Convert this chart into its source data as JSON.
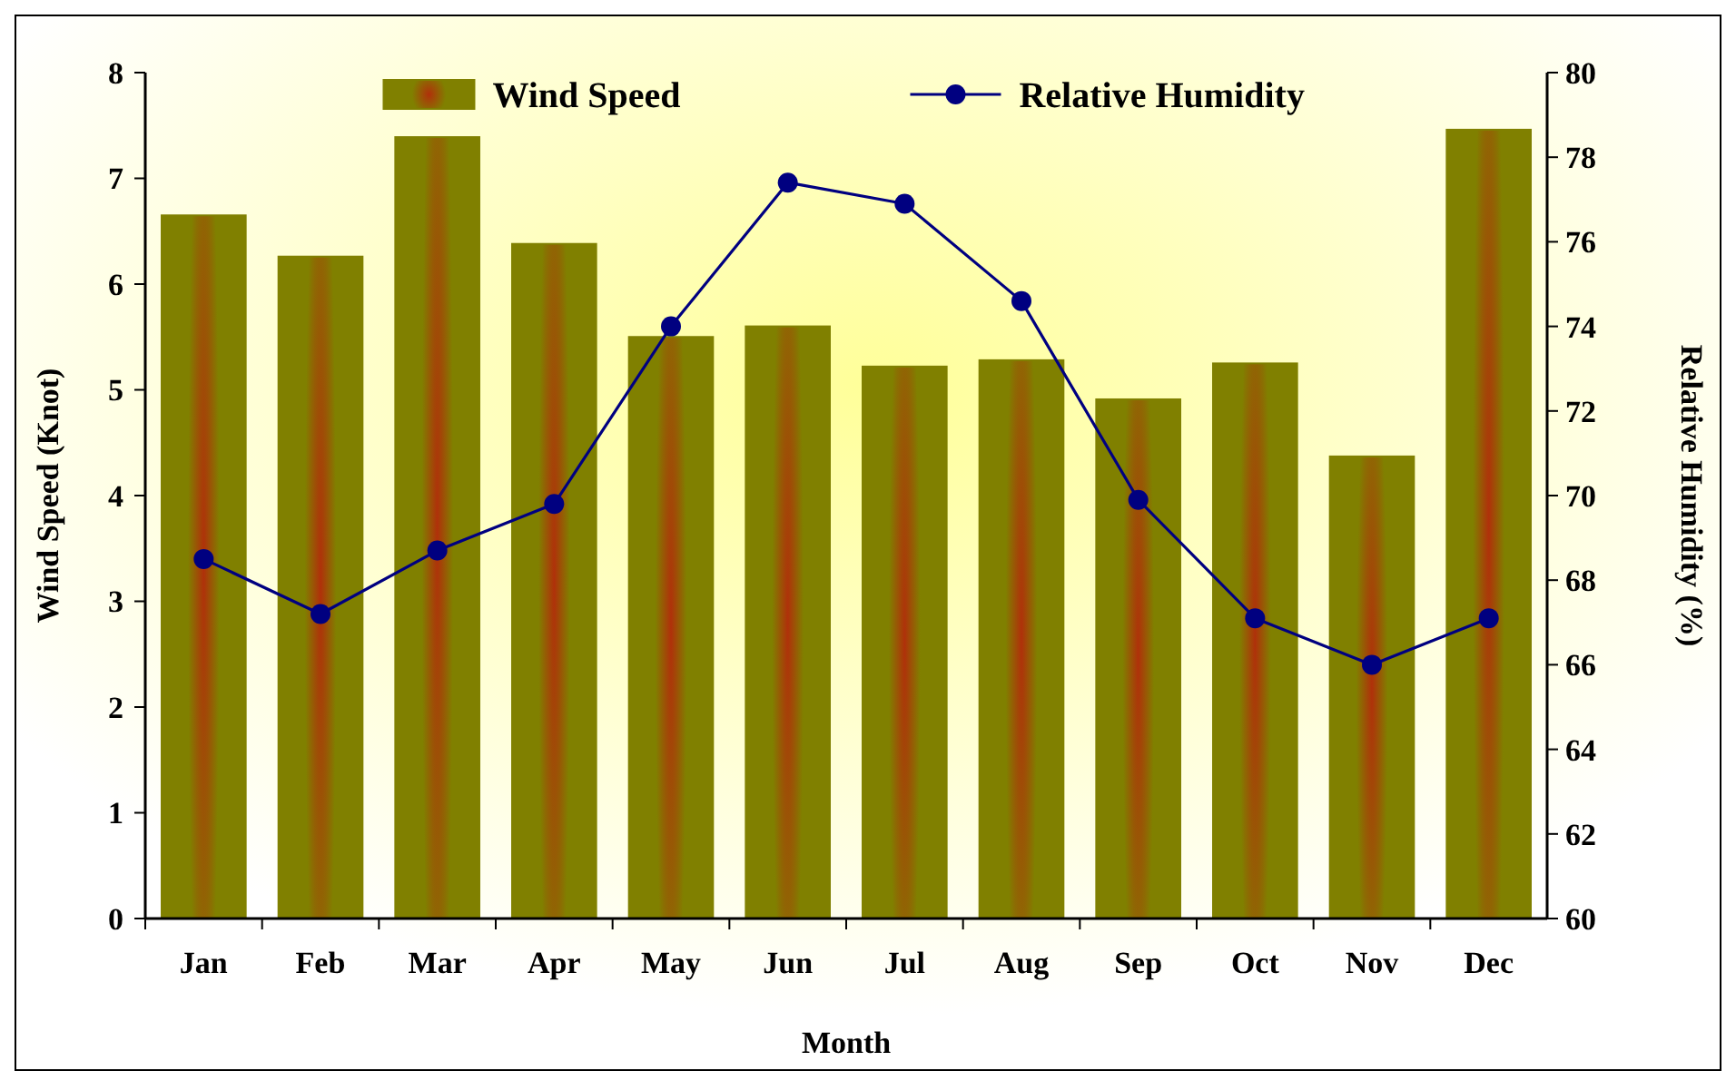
{
  "chart_data": {
    "type": "bar",
    "xlabel": "Month",
    "ylabel": "Wind Speed (Knot)",
    "y2label": "Relative Humidity (%)",
    "categories": [
      "Jan",
      "Feb",
      "Mar",
      "Apr",
      "May",
      "Jun",
      "Jul",
      "Aug",
      "Sep",
      "Oct",
      "Nov",
      "Dec"
    ],
    "series": [
      {
        "name": "Wind Speed",
        "color": "#808000",
        "values": [
          6.65,
          6.26,
          7.39,
          6.38,
          5.5,
          5.6,
          5.22,
          5.28,
          4.91,
          5.25,
          4.37,
          7.46
        ]
      },
      {
        "name": "Relative Humidity",
        "type": "line",
        "axis": "y2",
        "color": "#000080",
        "marker": "circle",
        "values": [
          68.5,
          67.2,
          68.7,
          69.8,
          74.0,
          77.4,
          76.9,
          74.6,
          69.9,
          67.1,
          66.0,
          67.1
        ]
      }
    ],
    "ylim": [
      0,
      8
    ],
    "yticks": [
      0,
      1,
      2,
      3,
      4,
      5,
      6,
      7,
      8
    ],
    "y2lim": [
      60,
      80
    ],
    "y2ticks": [
      60,
      62,
      64,
      66,
      68,
      70,
      72,
      74,
      76,
      78,
      80
    ],
    "legend": "top",
    "grid": false
  }
}
